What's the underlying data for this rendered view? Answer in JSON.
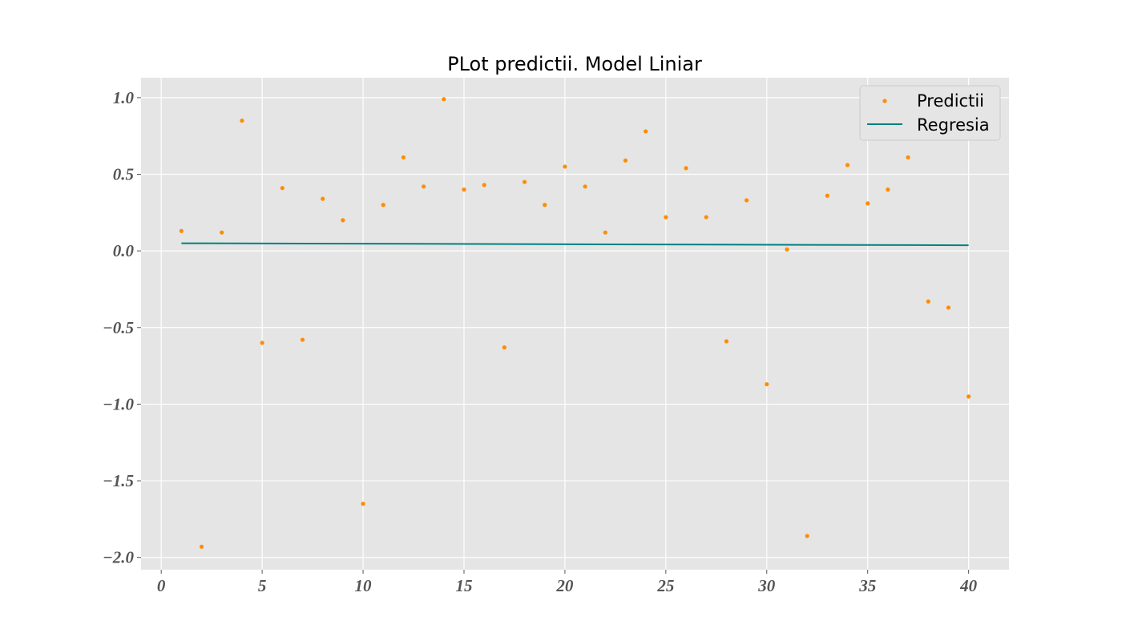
{
  "chart_data": {
    "type": "scatter",
    "title": "PLot predictii. Model Liniar",
    "xlabel": "",
    "ylabel": "",
    "xlim": [
      -1,
      42
    ],
    "ylim": [
      -2.08,
      1.13
    ],
    "x_ticks": [
      0,
      5,
      10,
      15,
      20,
      25,
      30,
      35,
      40
    ],
    "x_tick_labels": [
      "0",
      "5",
      "10",
      "15",
      "20",
      "25",
      "30",
      "35",
      "40"
    ],
    "y_ticks": [
      1.0,
      0.5,
      0.0,
      -0.5,
      -1.0,
      -1.5,
      -2.0
    ],
    "y_tick_labels": [
      "1.0",
      "0.5",
      "0.0",
      "−0.5",
      "−1.0",
      "−1.5",
      "−2.0"
    ],
    "grid": true,
    "legend_position": "top-right",
    "series": [
      {
        "name": "Predictii",
        "kind": "scatter",
        "color": "#ff8c00",
        "x": [
          1,
          2,
          3,
          4,
          5,
          6,
          7,
          8,
          9,
          10,
          11,
          12,
          13,
          14,
          15,
          16,
          17,
          18,
          19,
          20,
          21,
          22,
          23,
          24,
          25,
          26,
          27,
          28,
          29,
          30,
          31,
          32,
          33,
          34,
          35,
          36,
          37,
          38,
          39,
          40
        ],
        "y": [
          0.13,
          -1.93,
          0.12,
          0.85,
          -0.6,
          0.41,
          -0.58,
          0.34,
          0.2,
          -1.65,
          0.3,
          0.61,
          0.42,
          0.99,
          0.4,
          0.43,
          -0.63,
          0.45,
          0.3,
          0.55,
          0.42,
          0.12,
          0.59,
          0.78,
          0.22,
          0.54,
          0.22,
          -0.59,
          0.33,
          -0.87,
          0.01,
          -1.86,
          0.36,
          0.56,
          0.31,
          0.4,
          0.61,
          -0.33,
          -0.37,
          -0.95
        ]
      },
      {
        "name": "Regresia",
        "kind": "line",
        "color": "#008080",
        "x": [
          1,
          40
        ],
        "y": [
          0.05,
          0.037
        ]
      }
    ],
    "background_color": "#e5e5e5",
    "grid_color": "#ffffff"
  }
}
